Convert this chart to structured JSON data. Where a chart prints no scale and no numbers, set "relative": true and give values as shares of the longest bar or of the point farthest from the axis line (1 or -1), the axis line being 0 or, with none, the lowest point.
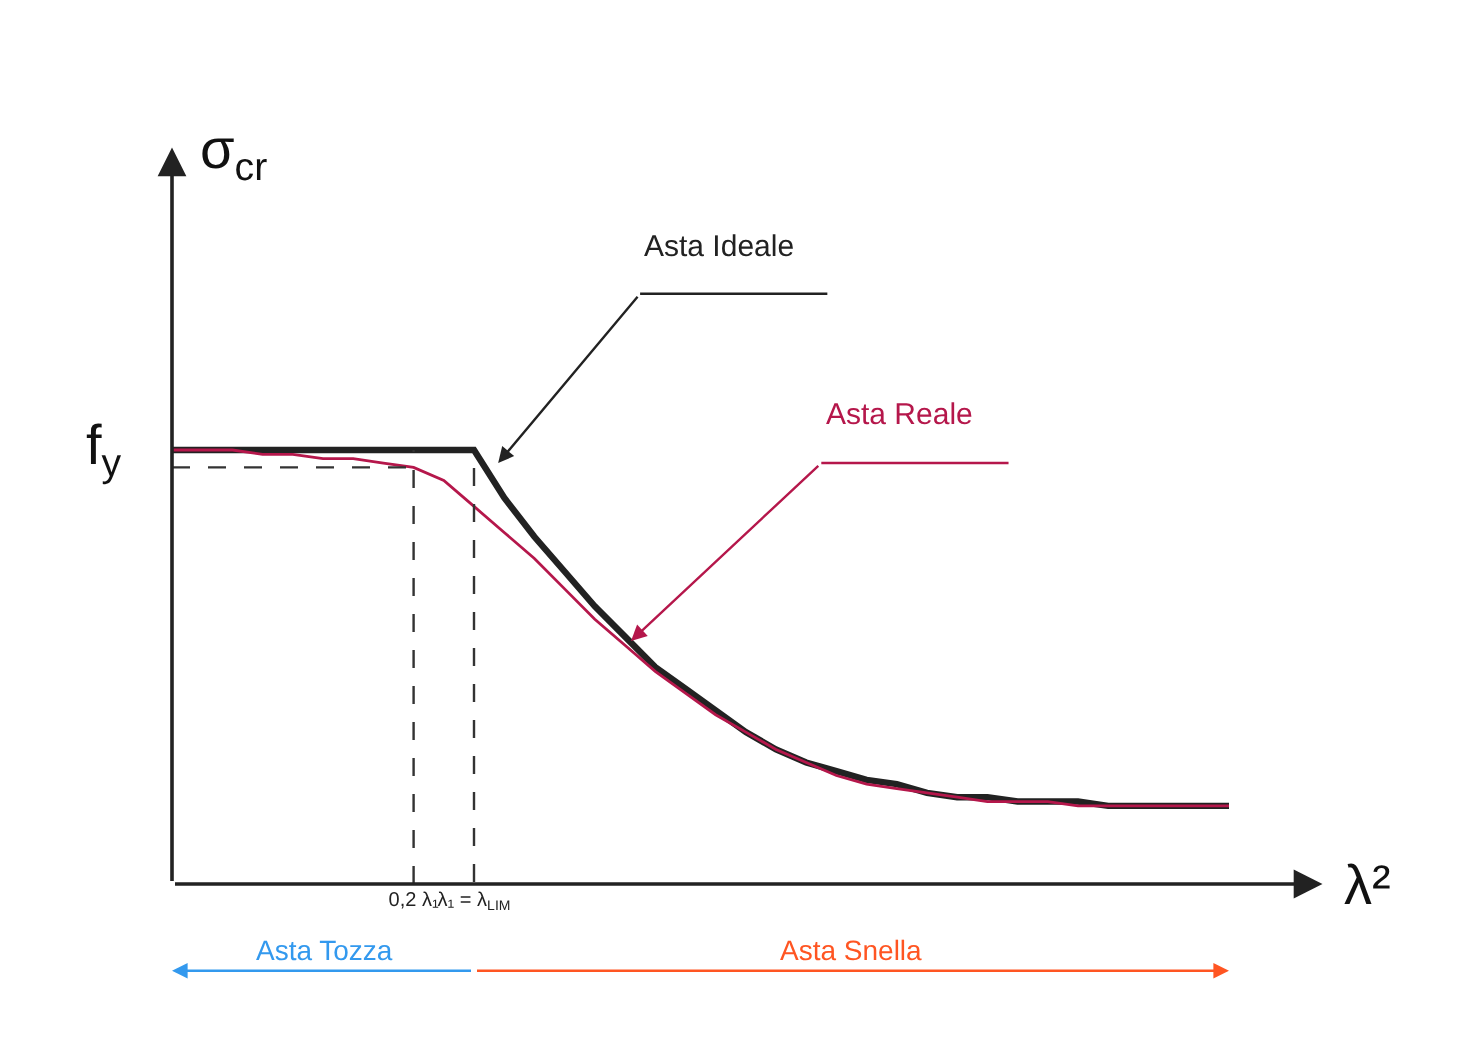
{
  "chart_data": {
    "type": "line",
    "relative": true,
    "xlabel": "λ²",
    "ylabel": "σ$_{cr}$",
    "categories": [
      null,
      null,
      null,
      null,
      null,
      null,
      null,
      null,
      "0,2 λ₁",
      null,
      "λ₁ = λ$_{LIM}$",
      null,
      null,
      null,
      null,
      null,
      null,
      null,
      null,
      null,
      null,
      null,
      null,
      null,
      null,
      null,
      null,
      null,
      null,
      null,
      null,
      null,
      null,
      null,
      null,
      null
    ],
    "series": [
      {
        "name": "Asta Ideale",
        "color": "#222222",
        "values": [
          1,
          1,
          1,
          1,
          1,
          1,
          1,
          1,
          1,
          1,
          1,
          0.89,
          0.8,
          0.72,
          0.64,
          0.57,
          0.5,
          0.45,
          0.4,
          0.35,
          0.31,
          0.28,
          0.26,
          0.24,
          0.23,
          0.21,
          0.2,
          0.2,
          0.19,
          0.19,
          0.19,
          0.18,
          0.18,
          0.18,
          0.18,
          0.18
        ]
      },
      {
        "name": "Asta Reale",
        "color": "#b5174b",
        "values": [
          1,
          1,
          1,
          0.99,
          0.99,
          0.98,
          0.98,
          0.97,
          0.96,
          0.93,
          0.87,
          0.81,
          0.75,
          0.68,
          0.61,
          0.55,
          0.49,
          0.44,
          0.39,
          0.35,
          0.31,
          0.28,
          0.25,
          0.23,
          0.22,
          0.21,
          0.2,
          0.19,
          0.19,
          0.19,
          0.18,
          0.18,
          0.18,
          0.18,
          0.18,
          0.18
        ]
      }
    ],
    "ref_lines": [
      {
        "axis": "y",
        "value": 0.96,
        "line_style": "dashed",
        "color": "#333333"
      },
      {
        "axis": "x",
        "value": "0,2 λ₁",
        "line_style": "dashed",
        "color": "#333333"
      },
      {
        "axis": "x",
        "value": "λ₁ = λ$_{LIM}$",
        "line_style": "dashed",
        "color": "#333333"
      }
    ],
    "annotations": [
      "f$_{y}$",
      "Asta Tozza",
      "Asta Snella"
    ],
    "legend": false,
    "marker": "none",
    "line_style": "solid"
  }
}
